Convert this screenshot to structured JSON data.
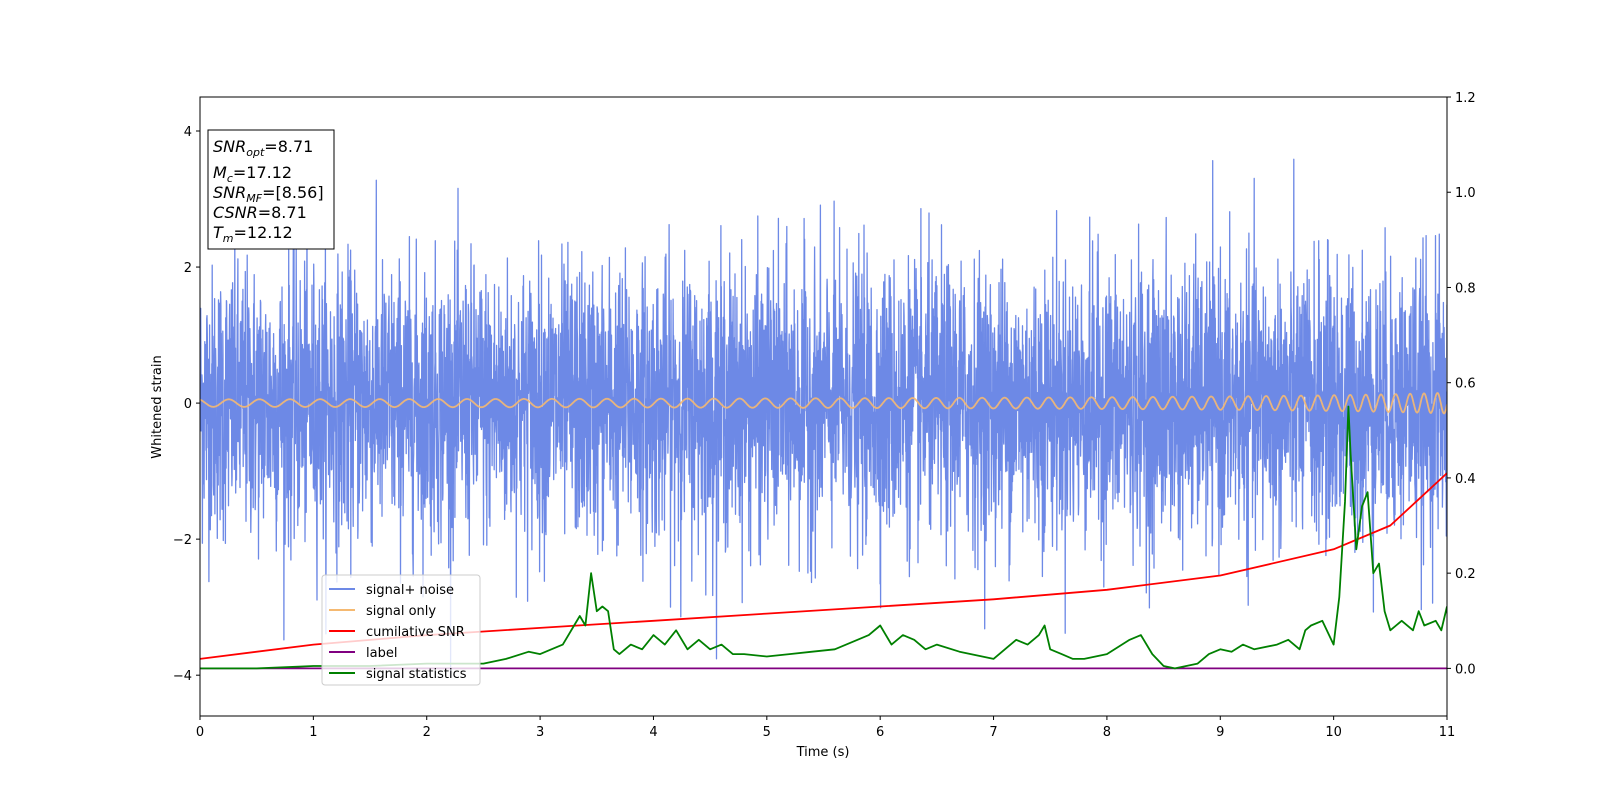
{
  "chart_data": {
    "type": "line",
    "xlabel": "Time (s)",
    "ylabel": "Whitened strain",
    "xlim": [
      0,
      11
    ],
    "ylim": [
      -4.6,
      4.5
    ],
    "y2lim": [
      -0.1,
      1.2
    ],
    "x_ticks": [
      "0",
      "1",
      "2",
      "3",
      "4",
      "5",
      "6",
      "7",
      "8",
      "9",
      "10",
      "11"
    ],
    "y_ticks": [
      "4",
      "2",
      "0",
      "−2",
      "−4"
    ],
    "y_tick_values": [
      4,
      2,
      0,
      -2,
      -4
    ],
    "y2_ticks": [
      "1.2",
      "1.0",
      "0.8",
      "0.6",
      "0.4",
      "0.2",
      "0.0"
    ],
    "y2_tick_values": [
      1.2,
      1.0,
      0.8,
      0.6,
      0.4,
      0.2,
      0.0
    ],
    "grid": false,
    "legend_position": "lower-left",
    "info_box": {
      "snr_opt": {
        "base": "SNR",
        "sub": "opt",
        "value": "=8.71"
      },
      "mc": {
        "base": "M",
        "sub": "c",
        "value": "=17.12"
      },
      "snr_mf": {
        "base": "SNR",
        "sub": "MF",
        "value": "=[8.56]"
      },
      "csnr": {
        "base": "CSNR",
        "value": "=8.71"
      },
      "tm": {
        "base": "T",
        "sub": "m",
        "value": "=12.12"
      }
    },
    "series": [
      {
        "name": "signal+ noise",
        "color": "#6d89e6",
        "axis": "left",
        "description_noise_std": 1.0,
        "peak_max": 4.08,
        "peak_min": -4.17
      },
      {
        "name": "signal only",
        "color": "#f5b971",
        "axis": "left",
        "chirp_start_amp": 0.01,
        "chirp_end_amp": 0.17,
        "t_end": 11
      },
      {
        "name": "cumilative SNR",
        "color": "#ff0000",
        "axis": "right",
        "x": [
          0,
          1,
          2,
          3,
          4,
          5,
          6,
          7,
          8,
          9,
          10,
          10.5,
          11
        ],
        "values": [
          0.02,
          0.05,
          0.07,
          0.085,
          0.1,
          0.115,
          0.13,
          0.145,
          0.165,
          0.195,
          0.25,
          0.3,
          0.41
        ]
      },
      {
        "name": "label",
        "color": "#800080",
        "axis": "right",
        "x": [
          0,
          11
        ],
        "values": [
          0.0,
          0.0
        ]
      },
      {
        "name": "signal statistics",
        "color": "#008000",
        "axis": "right",
        "x": [
          0,
          0.5,
          1,
          1.5,
          2,
          2.5,
          2.7,
          2.9,
          3.0,
          3.1,
          3.2,
          3.3,
          3.35,
          3.4,
          3.45,
          3.5,
          3.55,
          3.6,
          3.65,
          3.7,
          3.8,
          3.9,
          4.0,
          4.1,
          4.2,
          4.3,
          4.4,
          4.5,
          4.6,
          4.7,
          4.8,
          5.0,
          5.2,
          5.4,
          5.6,
          5.8,
          5.9,
          6.0,
          6.1,
          6.2,
          6.3,
          6.4,
          6.5,
          6.7,
          6.9,
          7.0,
          7.1,
          7.2,
          7.3,
          7.4,
          7.45,
          7.5,
          7.6,
          7.7,
          7.8,
          8.0,
          8.2,
          8.3,
          8.4,
          8.5,
          8.6,
          8.8,
          8.9,
          9.0,
          9.1,
          9.2,
          9.3,
          9.5,
          9.6,
          9.7,
          9.75,
          9.8,
          9.9,
          10.0,
          10.05,
          10.1,
          10.13,
          10.15,
          10.2,
          10.25,
          10.3,
          10.35,
          10.4,
          10.45,
          10.5,
          10.6,
          10.7,
          10.75,
          10.8,
          10.9,
          10.95,
          11.0
        ],
        "values": [
          0.0,
          0.0,
          0.005,
          0.005,
          0.01,
          0.01,
          0.02,
          0.035,
          0.03,
          0.04,
          0.05,
          0.09,
          0.11,
          0.09,
          0.2,
          0.12,
          0.13,
          0.12,
          0.04,
          0.03,
          0.05,
          0.04,
          0.07,
          0.05,
          0.08,
          0.04,
          0.06,
          0.04,
          0.05,
          0.03,
          0.03,
          0.025,
          0.03,
          0.035,
          0.04,
          0.06,
          0.07,
          0.09,
          0.05,
          0.07,
          0.06,
          0.04,
          0.05,
          0.035,
          0.025,
          0.02,
          0.04,
          0.06,
          0.05,
          0.07,
          0.09,
          0.04,
          0.03,
          0.02,
          0.02,
          0.03,
          0.06,
          0.07,
          0.03,
          0.005,
          0.0,
          0.01,
          0.03,
          0.04,
          0.035,
          0.05,
          0.04,
          0.05,
          0.06,
          0.04,
          0.08,
          0.09,
          0.1,
          0.05,
          0.15,
          0.35,
          0.55,
          0.45,
          0.25,
          0.34,
          0.37,
          0.2,
          0.22,
          0.12,
          0.08,
          0.1,
          0.08,
          0.12,
          0.09,
          0.1,
          0.08,
          0.13
        ]
      }
    ]
  }
}
